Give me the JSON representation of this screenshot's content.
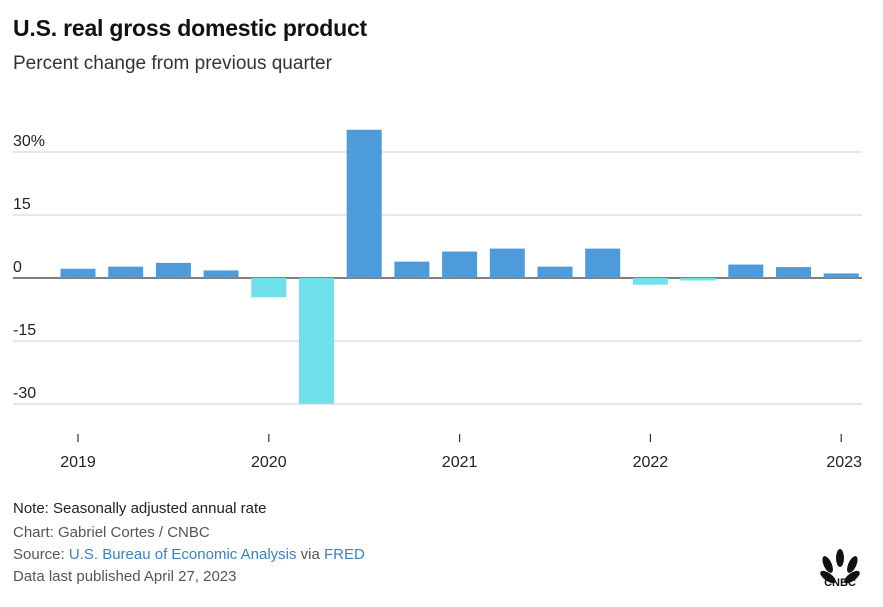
{
  "header": {
    "title": "U.S. real gross domestic product",
    "subtitle": "Percent change from previous quarter"
  },
  "chart_data": {
    "type": "bar",
    "title": "U.S. real gross domestic product",
    "subtitle": "Percent change from previous quarter",
    "xlabel": "",
    "ylabel": "",
    "ylim": [
      -37,
      37
    ],
    "yticks": [
      30,
      15,
      0,
      -15,
      -30
    ],
    "ytick_labels": [
      "30%",
      "15",
      "0",
      "-15",
      "-30"
    ],
    "xtick_labels": [
      "2019",
      "2020",
      "2021",
      "2022",
      "2023"
    ],
    "grid": true,
    "legend": "none",
    "categories": [
      "2019 Q1",
      "2019 Q2",
      "2019 Q3",
      "2019 Q4",
      "2020 Q1",
      "2020 Q2",
      "2020 Q3",
      "2020 Q4",
      "2021 Q1",
      "2021 Q2",
      "2021 Q3",
      "2021 Q4",
      "2022 Q1",
      "2022 Q2",
      "2022 Q3",
      "2022 Q4",
      "2023 Q1"
    ],
    "values": [
      2.2,
      2.7,
      3.6,
      1.8,
      -4.6,
      -29.9,
      35.3,
      3.9,
      6.3,
      7.0,
      2.7,
      7.0,
      -1.6,
      -0.6,
      3.2,
      2.6,
      1.1
    ],
    "colors": {
      "positive": "#4e9bdc",
      "negative": "#6ee1ea"
    }
  },
  "footer": {
    "note": "Note: Seasonally adjusted annual rate",
    "credit": "Chart: Gabriel Cortes / CNBC",
    "source_prefix": "Source: ",
    "source_link1": "U.S. Bureau of Economic Analysis",
    "source_via": " via ",
    "source_link2": "FRED",
    "published": "Data last published April 27, 2023"
  },
  "branding": {
    "logo_text": "CNBC",
    "logo_icon": "cnbc-peacock-icon"
  },
  "colors": {
    "link": "#3b82c4",
    "grid": "#cfcfcf",
    "zero_line": "#333333"
  }
}
